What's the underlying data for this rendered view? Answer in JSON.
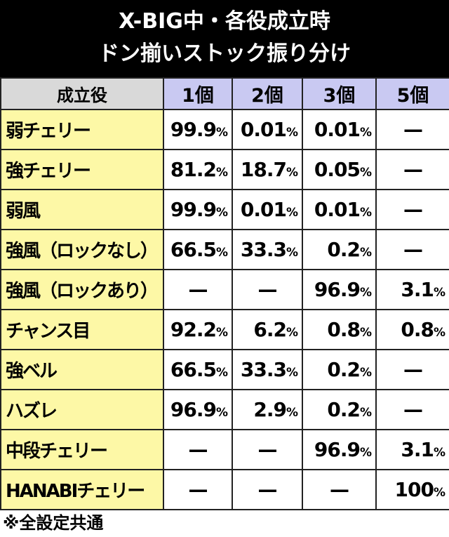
{
  "header": {
    "title_line1": "X-BIG中・各役成立時",
    "title_line2": "ドン揃いストック振り分け"
  },
  "table": {
    "columns": [
      "成立役",
      "1個",
      "2個",
      "3個",
      "5個"
    ],
    "rows": [
      [
        "弱チェリー",
        "99.9%",
        "0.01%",
        "0.01%",
        "—"
      ],
      [
        "強チェリー",
        "81.2%",
        "18.7%",
        "0.05%",
        "—"
      ],
      [
        "弱風",
        "99.9%",
        "0.01%",
        "0.01%",
        "—"
      ],
      [
        "強風（ロックなし）",
        "66.5%",
        "33.3%",
        "0.2%",
        "—"
      ],
      [
        "強風（ロックあり）",
        "—",
        "—",
        "96.9%",
        "3.1%"
      ],
      [
        "チャンス目",
        "92.2%",
        "6.2%",
        "0.8%",
        "0.8%"
      ],
      [
        "強ベル",
        "66.5%",
        "33.3%",
        "0.2%",
        "—"
      ],
      [
        "ハズレ",
        "96.9%",
        "2.9%",
        "0.2%",
        "—"
      ],
      [
        "中段チェリー",
        "—",
        "—",
        "96.9%",
        "3.1%"
      ],
      [
        "HANABIチェリー",
        "—",
        "—",
        "—",
        "100%"
      ]
    ]
  },
  "footnote": "※全設定共通"
}
